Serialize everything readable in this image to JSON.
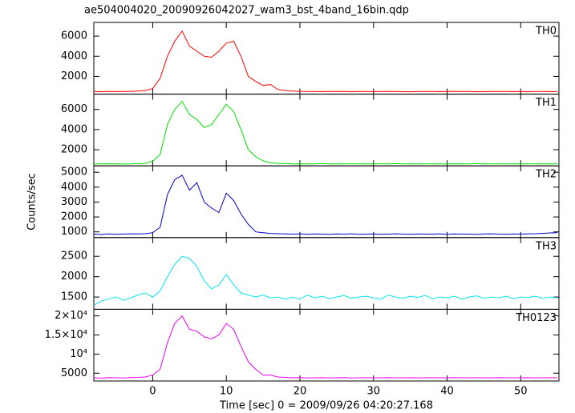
{
  "chart_data": {
    "type": "line",
    "title": "ae504004020_20090926042027_wam3_bst_4band_16bin.qdp",
    "xlabel": "Time [sec] 0 = 2009/09/26 04:20:27.168",
    "ylabel": "Counts/sec",
    "xlim": [
      -8,
      55.2
    ],
    "xticks": [
      0,
      10,
      20,
      30,
      40,
      50
    ],
    "x": [
      -8,
      -7,
      -6,
      -5,
      -4,
      -3,
      -2,
      -1,
      0,
      1,
      2,
      3,
      4,
      5,
      6,
      7,
      8,
      9,
      10,
      11,
      12,
      13,
      14,
      15,
      16,
      17,
      18,
      19,
      20,
      21,
      22,
      23,
      24,
      25,
      26,
      27,
      28,
      29,
      30,
      31,
      32,
      33,
      34,
      35,
      36,
      37,
      38,
      39,
      40,
      41,
      42,
      43,
      44,
      45,
      46,
      47,
      48,
      49,
      50,
      51,
      52,
      53,
      54,
      55
    ],
    "series": [
      {
        "name": "TH0",
        "color": "#ff0000",
        "ylim": [
          240,
          7360
        ],
        "yticks": [
          2000,
          4000,
          6000
        ],
        "values": [
          500,
          480,
          510,
          490,
          500,
          520,
          550,
          600,
          800,
          1800,
          4000,
          5500,
          6500,
          5000,
          4500,
          4000,
          3900,
          4500,
          5300,
          5500,
          4000,
          2000,
          1500,
          1100,
          1200,
          700,
          600,
          550,
          520,
          510,
          500,
          490,
          510,
          520,
          500,
          480,
          500,
          510,
          490,
          500,
          520,
          500,
          490,
          480,
          500,
          510,
          500,
          490,
          500,
          520,
          510,
          500,
          480,
          490,
          500,
          510,
          500,
          490,
          500,
          480,
          510,
          500,
          490,
          500
        ]
      },
      {
        "name": "TH1",
        "color": "#00e000",
        "ylim": [
          400,
          7520
        ],
        "yticks": [
          2000,
          4000,
          6000
        ],
        "values": [
          600,
          590,
          610,
          600,
          580,
          600,
          620,
          650,
          850,
          1500,
          4500,
          6000,
          6800,
          5500,
          5000,
          4200,
          4500,
          5500,
          6500,
          5800,
          4000,
          2000,
          1300,
          900,
          700,
          650,
          620,
          600,
          610,
          590,
          600,
          620,
          600,
          590,
          600,
          610,
          600,
          590,
          600,
          610,
          600,
          620,
          600,
          590,
          600,
          610,
          600,
          600,
          590,
          610,
          600,
          600,
          620,
          590,
          600,
          610,
          600,
          590,
          600,
          610,
          600,
          590,
          600,
          610
        ]
      },
      {
        "name": "TH2",
        "color": "#0000cc",
        "ylim": [
          620,
          5430
        ],
        "yticks": [
          1000,
          2000,
          3000,
          4000,
          5000
        ],
        "values": [
          850,
          820,
          860,
          840,
          850,
          870,
          860,
          880,
          950,
          1300,
          3500,
          4500,
          4800,
          3800,
          4300,
          3000,
          2600,
          2300,
          3600,
          3100,
          2200,
          1500,
          1000,
          950,
          900,
          880,
          860,
          850,
          870,
          840,
          860,
          850,
          830,
          860,
          850,
          870,
          840,
          850,
          860,
          840,
          850,
          870,
          850,
          840,
          860,
          850,
          850,
          870,
          840,
          860,
          850,
          850,
          830,
          860,
          870,
          850,
          840,
          860,
          850,
          870,
          880,
          900,
          930,
          950
        ]
      },
      {
        "name": "TH3",
        "color": "#00e5ee",
        "ylim": [
          1200,
          2960
        ],
        "yticks": [
          1500,
          2000,
          2500
        ],
        "values": [
          1300,
          1400,
          1450,
          1500,
          1420,
          1480,
          1550,
          1600,
          1500,
          1650,
          2000,
          2300,
          2500,
          2450,
          2250,
          1900,
          1700,
          1800,
          2050,
          1800,
          1600,
          1550,
          1500,
          1550,
          1480,
          1500,
          1450,
          1500,
          1450,
          1550,
          1480,
          1520,
          1460,
          1500,
          1540,
          1470,
          1500,
          1520,
          1480,
          1450,
          1550,
          1500,
          1470,
          1520,
          1490,
          1540,
          1460,
          1500,
          1480,
          1520,
          1450,
          1500,
          1530,
          1470,
          1500,
          1480,
          1520,
          1460,
          1500,
          1490,
          1520,
          1470,
          1500,
          1480
        ]
      },
      {
        "name": "TH0123",
        "color": "#ee00ee",
        "ylim": [
          2960,
          21730
        ],
        "yticks": [
          5000,
          {
            "value": 10000,
            "label": "10⁴"
          },
          {
            "value": 15000,
            "label": "1.5×10⁴"
          },
          {
            "value": 20000,
            "label": "2×10⁴"
          }
        ],
        "values": [
          3800,
          3700,
          3850,
          3800,
          3750,
          3850,
          3900,
          4000,
          4500,
          6000,
          13000,
          18000,
          20000,
          16500,
          16000,
          14500,
          14000,
          15000,
          18000,
          16500,
          12000,
          8000,
          6000,
          4500,
          4500,
          4000,
          3900,
          3800,
          3850,
          3750,
          3800,
          3820,
          3780,
          3800,
          3850,
          3760,
          3800,
          3820,
          3790,
          3800,
          3850,
          3780,
          3800,
          3810,
          3770,
          3800,
          3820,
          3800,
          3780,
          3850,
          3800,
          3790,
          3810,
          3800,
          3770,
          3830,
          3800,
          3790,
          3800,
          3820,
          3780,
          3800,
          3810,
          3790
        ]
      }
    ]
  }
}
